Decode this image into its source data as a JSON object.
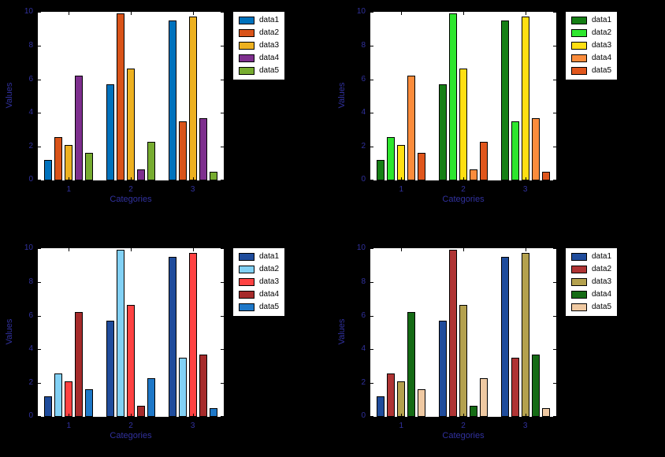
{
  "figure": {
    "background": "#000000",
    "plot_background": "#ffffff",
    "axis_text_color": "#31319e",
    "legend_text_color": "#000000",
    "grid": "off",
    "layout": "2x2 subplots"
  },
  "chart_data": [
    {
      "type": "bar",
      "title": "",
      "xlabel": "Categories",
      "ylabel": "Values",
      "categories": [
        "1",
        "2",
        "3"
      ],
      "ylim": [
        0,
        10
      ],
      "yticks": [
        "0",
        "2",
        "4",
        "6",
        "8",
        "10"
      ],
      "legend_position": "outside-top-right",
      "series": [
        {
          "name": "data1",
          "color": "#0072BD",
          "values": [
            1.2,
            5.7,
            9.5
          ]
        },
        {
          "name": "data2",
          "color": "#D95319",
          "values": [
            2.55,
            9.9,
            3.5
          ]
        },
        {
          "name": "data3",
          "color": "#EDB120",
          "values": [
            2.1,
            6.65,
            9.7
          ]
        },
        {
          "name": "data4",
          "color": "#7E2F8E",
          "values": [
            6.2,
            0.65,
            3.7
          ]
        },
        {
          "name": "data5",
          "color": "#77AC30",
          "values": [
            1.65,
            2.3,
            0.5
          ]
        }
      ]
    },
    {
      "type": "bar",
      "title": "",
      "xlabel": "Categories",
      "ylabel": "Values",
      "categories": [
        "1",
        "2",
        "3"
      ],
      "ylim": [
        0,
        10
      ],
      "yticks": [
        "0",
        "2",
        "4",
        "6",
        "8",
        "10"
      ],
      "legend_position": "outside-top-right",
      "series": [
        {
          "name": "data1",
          "color": "#157F15",
          "values": [
            1.2,
            5.7,
            9.5
          ]
        },
        {
          "name": "data2",
          "color": "#2EE62E",
          "values": [
            2.55,
            9.9,
            3.5
          ]
        },
        {
          "name": "data3",
          "color": "#FFDF12",
          "values": [
            2.1,
            6.65,
            9.7
          ]
        },
        {
          "name": "data4",
          "color": "#FB8C3C",
          "values": [
            6.2,
            0.65,
            3.7
          ]
        },
        {
          "name": "data5",
          "color": "#E0561C",
          "values": [
            1.65,
            2.3,
            0.5
          ]
        }
      ]
    },
    {
      "type": "bar",
      "title": "",
      "xlabel": "Categories",
      "ylabel": "Values",
      "categories": [
        "1",
        "2",
        "3"
      ],
      "ylim": [
        0,
        10
      ],
      "yticks": [
        "0",
        "2",
        "4",
        "6",
        "8",
        "10"
      ],
      "legend_position": "outside-top-right",
      "series": [
        {
          "name": "data1",
          "color": "#1F4C9C",
          "values": [
            1.2,
            5.7,
            9.5
          ]
        },
        {
          "name": "data2",
          "color": "#82D1F5",
          "values": [
            2.55,
            9.9,
            3.5
          ]
        },
        {
          "name": "data3",
          "color": "#FF4242",
          "values": [
            2.1,
            6.65,
            9.7
          ]
        },
        {
          "name": "data4",
          "color": "#A62B2B",
          "values": [
            6.2,
            0.65,
            3.7
          ]
        },
        {
          "name": "data5",
          "color": "#1E78C8",
          "values": [
            1.65,
            2.3,
            0.5
          ]
        }
      ]
    },
    {
      "type": "bar",
      "title": "",
      "xlabel": "Categories",
      "ylabel": "Values",
      "categories": [
        "1",
        "2",
        "3"
      ],
      "ylim": [
        0,
        10
      ],
      "yticks": [
        "0",
        "2",
        "4",
        "6",
        "8",
        "10"
      ],
      "legend_position": "outside-top-right",
      "series": [
        {
          "name": "data1",
          "color": "#1F4C9C",
          "values": [
            1.2,
            5.7,
            9.5
          ]
        },
        {
          "name": "data2",
          "color": "#AF3434",
          "values": [
            2.55,
            9.9,
            3.5
          ]
        },
        {
          "name": "data3",
          "color": "#B4A14E",
          "values": [
            2.1,
            6.65,
            9.7
          ]
        },
        {
          "name": "data4",
          "color": "#156B15",
          "values": [
            6.2,
            0.65,
            3.7
          ]
        },
        {
          "name": "data5",
          "color": "#EFC9A2",
          "values": [
            1.65,
            2.3,
            0.5
          ]
        }
      ]
    }
  ]
}
